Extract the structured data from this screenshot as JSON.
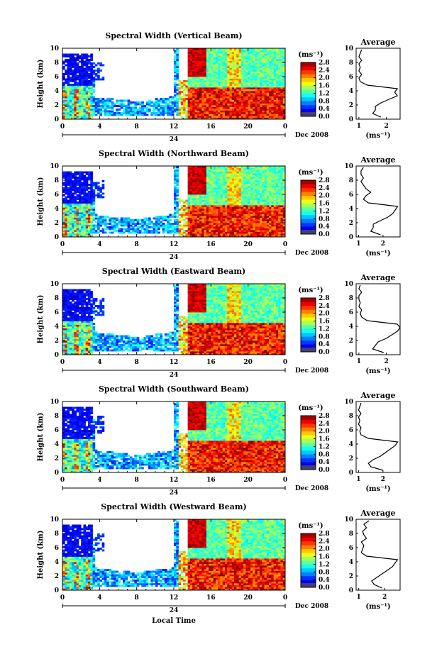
{
  "chart_data": [
    {
      "type": "heatmap",
      "title": "Spectral Width (Vertical Beam)",
      "ylabel": "Height (km)",
      "ylim": [
        0,
        10
      ],
      "yticks": [
        "0",
        "2",
        "4",
        "6",
        "8",
        "10"
      ],
      "xticks": [
        "0",
        "4",
        "8",
        "12",
        "16",
        "20",
        "0"
      ],
      "xlim_hours": [
        0,
        24
      ],
      "date_mid_label": "24",
      "date_label": "Dec 2008",
      "colorbar": {
        "unit": "(ms⁻¹)",
        "ticks": [
          "0.0",
          "0.4",
          "0.8",
          "1.2",
          "1.6",
          "2.0",
          "2.4",
          "2.8"
        ],
        "range": [
          0,
          2.8
        ]
      },
      "average": {
        "title": "Average",
        "xlabel": "(ms⁻¹)",
        "xticks": [
          "1",
          "2"
        ],
        "yticks": [
          "0",
          "2",
          "4",
          "6",
          "8",
          "10"
        ],
        "xlim": [
          0.9,
          2.5
        ],
        "heights": [
          0.3,
          0.8,
          1.3,
          1.8,
          2.3,
          2.8,
          3.3,
          3.8,
          4.3,
          4.8,
          5.3,
          5.8,
          6.3,
          6.8,
          7.3,
          7.8,
          8.3,
          8.8,
          9.3,
          9.8
        ],
        "values": [
          1.8,
          1.5,
          1.6,
          1.6,
          1.8,
          2.1,
          2.4,
          2.3,
          2.4,
          1.3,
          1.05,
          1.0,
          1.1,
          1.0,
          1.05,
          1.0,
          1.1,
          1.0,
          1.05,
          1.1
        ]
      }
    },
    {
      "type": "heatmap",
      "title": "Spectral Width (Northward Beam)",
      "ylabel": "Height (km)",
      "ylim": [
        0,
        10
      ],
      "yticks": [
        "0",
        "2",
        "4",
        "6",
        "8",
        "10"
      ],
      "xticks": [
        "0",
        "4",
        "8",
        "12",
        "16",
        "20",
        "0"
      ],
      "xlim_hours": [
        0,
        24
      ],
      "date_mid_label": "24",
      "date_label": "Dec 2008",
      "colorbar": {
        "unit": "(ms⁻¹)",
        "ticks": [
          "0.0",
          "0.4",
          "0.8",
          "1.2",
          "1.6",
          "2.0",
          "2.4",
          "2.8"
        ],
        "range": [
          0,
          2.8
        ]
      },
      "average": {
        "title": "Average",
        "xlabel": "(ms⁻¹)",
        "xticks": [
          "1",
          "2"
        ],
        "yticks": [
          "0",
          "2",
          "4",
          "6",
          "8",
          "10"
        ],
        "xlim": [
          0.9,
          2.7
        ],
        "heights": [
          0.3,
          0.8,
          1.3,
          1.8,
          2.3,
          2.8,
          3.3,
          3.8,
          4.3,
          4.8,
          5.3,
          5.8,
          6.3,
          6.8,
          7.3,
          7.8,
          8.3,
          8.8,
          9.3,
          9.8
        ],
        "values": [
          1.9,
          1.5,
          1.6,
          1.6,
          1.9,
          2.2,
          2.4,
          2.5,
          2.6,
          1.4,
          1.2,
          1.3,
          1.5,
          1.3,
          1.2,
          1.1,
          1.2,
          1.1,
          1.1,
          1.2
        ]
      }
    },
    {
      "type": "heatmap",
      "title": "Spectral Width (Eastward Beam)",
      "ylabel": "Height (km)",
      "ylim": [
        0,
        10
      ],
      "yticks": [
        "0",
        "2",
        "4",
        "6",
        "8",
        "10"
      ],
      "xticks": [
        "0",
        "4",
        "8",
        "12",
        "16",
        "20",
        "0"
      ],
      "xlim_hours": [
        0,
        24
      ],
      "date_mid_label": "24",
      "date_label": "Dec 2008",
      "colorbar": {
        "unit": "(ms⁻¹)",
        "ticks": [
          "0.0",
          "0.4",
          "0.8",
          "1.2",
          "1.6",
          "2.0",
          "2.4",
          "2.8"
        ],
        "range": [
          0,
          2.8
        ]
      },
      "average": {
        "title": "Average",
        "xlabel": "(ms⁻¹)",
        "xticks": [
          "1",
          "2"
        ],
        "yticks": [
          "0",
          "2",
          "4",
          "6",
          "8",
          "10"
        ],
        "xlim": [
          0.9,
          2.5
        ],
        "heights": [
          0.3,
          0.8,
          1.3,
          1.8,
          2.3,
          2.8,
          3.3,
          3.8,
          4.3,
          4.8,
          5.3,
          5.8,
          6.3,
          6.8,
          7.3,
          7.8,
          8.3,
          8.8,
          9.3,
          9.8
        ],
        "values": [
          1.9,
          1.5,
          1.6,
          1.7,
          2.0,
          2.2,
          2.4,
          2.5,
          2.4,
          1.3,
          1.1,
          1.05,
          1.1,
          1.0,
          1.05,
          1.0,
          1.0,
          1.1,
          1.0,
          1.05
        ]
      }
    },
    {
      "type": "heatmap",
      "title": "Spectral Width (Southward Beam)",
      "ylabel": "Height (km)",
      "ylim": [
        0,
        10
      ],
      "yticks": [
        "0",
        "2",
        "4",
        "6",
        "8",
        "10"
      ],
      "xticks": [
        "0",
        "4",
        "8",
        "12",
        "16",
        "20",
        "0"
      ],
      "xlim_hours": [
        0,
        24
      ],
      "date_mid_label": "24",
      "date_label": "Dec 2008",
      "colorbar": {
        "unit": "(ms⁻¹)",
        "ticks": [
          "0.0",
          "0.4",
          "0.8",
          "1.2",
          "1.6",
          "2.0",
          "2.4",
          "2.8"
        ],
        "range": [
          0,
          2.8
        ]
      },
      "average": {
        "title": "Average",
        "xlabel": "(ms⁻¹)",
        "xticks": [
          "1",
          "2"
        ],
        "yticks": [
          "0",
          "2",
          "4",
          "6",
          "8",
          "10"
        ],
        "xlim": [
          0.9,
          2.7
        ],
        "heights": [
          0.3,
          0.8,
          1.3,
          1.8,
          2.3,
          2.8,
          3.3,
          3.8,
          4.3,
          4.8,
          5.3,
          5.8,
          6.3,
          6.8,
          7.3,
          7.8,
          8.3,
          8.8,
          9.3,
          9.8
        ],
        "values": [
          2.0,
          1.5,
          1.4,
          1.6,
          1.9,
          2.1,
          2.3,
          2.5,
          2.6,
          1.4,
          1.1,
          1.05,
          1.1,
          1.0,
          1.05,
          1.0,
          1.1,
          1.0,
          1.05,
          1.1
        ]
      }
    },
    {
      "type": "heatmap",
      "title": "Spectral Width (Westward Beam)",
      "ylabel": "Height (km)",
      "ylim": [
        0,
        10
      ],
      "yticks": [
        "0",
        "2",
        "4",
        "6",
        "8",
        "10"
      ],
      "xticks": [
        "0",
        "4",
        "8",
        "12",
        "16",
        "20",
        "0"
      ],
      "xlim_hours": [
        0,
        24
      ],
      "date_mid_label": "24",
      "date_label": "Dec 2008",
      "xlabel": "Local Time",
      "colorbar": {
        "unit": "(ms⁻¹)",
        "ticks": [
          "0.0",
          "0.4",
          "0.8",
          "1.2",
          "1.6",
          "2.0",
          "2.4",
          "2.8"
        ],
        "range": [
          0,
          2.8
        ]
      },
      "average": {
        "title": "Average",
        "xlabel": "(ms⁻¹)",
        "xticks": [
          "1",
          "2"
        ],
        "yticks": [
          "0",
          "2",
          "4",
          "6",
          "8",
          "10"
        ],
        "xlim": [
          0.9,
          2.6
        ],
        "heights": [
          0.3,
          0.8,
          1.3,
          1.8,
          2.3,
          2.8,
          3.3,
          3.8,
          4.3,
          4.8,
          5.3,
          5.8,
          6.3,
          6.8,
          7.3,
          7.8,
          8.3,
          8.8,
          9.3,
          9.8
        ],
        "values": [
          1.9,
          1.6,
          1.5,
          1.7,
          1.9,
          2.1,
          2.3,
          2.4,
          2.5,
          1.3,
          1.1,
          1.15,
          1.2,
          1.1,
          1.3,
          1.2,
          1.15,
          1.3,
          1.2,
          1.4
        ]
      }
    }
  ]
}
